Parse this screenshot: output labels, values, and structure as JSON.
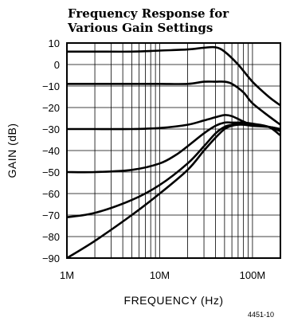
{
  "chart_data": {
    "type": "line",
    "title": "Frequency Response for\nVarious Gain Settings",
    "xlabel": "FREQUENCY (Hz)",
    "ylabel": "GAIN (dB)",
    "x_scale": "log",
    "xlim": [
      1000000,
      200000000
    ],
    "ylim": [
      -90,
      10
    ],
    "x_tick_labels": [
      {
        "value": 1000000,
        "label": "1M"
      },
      {
        "value": 10000000,
        "label": "10M"
      },
      {
        "value": 100000000,
        "label": "100M"
      }
    ],
    "y_ticks": [
      10,
      0,
      -10,
      -20,
      -30,
      -40,
      -50,
      -60,
      -70,
      -80,
      -90
    ],
    "grid": true,
    "figure_ref": "4451-10",
    "series": [
      {
        "x": [
          1000000,
          2000000,
          5000000,
          10000000,
          20000000,
          30000000,
          40000000,
          50000000,
          70000000,
          100000000,
          150000000,
          200000000
        ],
        "y": [
          6,
          6,
          6,
          6.5,
          7,
          7.8,
          8,
          6,
          0,
          -8,
          -15,
          -19
        ]
      },
      {
        "x": [
          1000000,
          2000000,
          5000000,
          10000000,
          20000000,
          30000000,
          40000000,
          50000000,
          60000000,
          80000000,
          100000000,
          150000000,
          200000000
        ],
        "y": [
          -9,
          -9,
          -9,
          -9,
          -9,
          -8,
          -8,
          -8,
          -9,
          -13,
          -18,
          -24,
          -28
        ]
      },
      {
        "x": [
          1000000,
          2000000,
          5000000,
          10000000,
          20000000,
          30000000,
          40000000,
          50000000,
          60000000,
          80000000,
          100000000,
          150000000,
          200000000
        ],
        "y": [
          -30,
          -30,
          -30,
          -29.5,
          -28,
          -26,
          -24.5,
          -23.5,
          -24,
          -26.5,
          -28,
          -29,
          -30
        ]
      },
      {
        "x": [
          1000000,
          2000000,
          5000000,
          10000000,
          15000000,
          20000000,
          30000000,
          40000000,
          50000000,
          60000000,
          70000000,
          80000000,
          100000000,
          150000000,
          200000000
        ],
        "y": [
          -50,
          -50,
          -49,
          -46,
          -42,
          -38,
          -32,
          -28.5,
          -27,
          -27,
          -27,
          -27,
          -27.5,
          -29,
          -33
        ]
      },
      {
        "x": [
          1000000,
          2000000,
          5000000,
          10000000,
          20000000,
          30000000,
          40000000,
          50000000,
          60000000,
          70000000,
          80000000,
          100000000,
          150000000,
          200000000
        ],
        "y": [
          -71,
          -69,
          -63,
          -56,
          -46,
          -38,
          -32,
          -29,
          -28,
          -27.5,
          -27.5,
          -28,
          -29,
          -31
        ]
      },
      {
        "x": [
          1000000,
          2000000,
          5000000,
          10000000,
          20000000,
          30000000,
          40000000,
          50000000,
          60000000,
          70000000,
          80000000,
          100000000,
          150000000,
          200000000
        ],
        "y": [
          -90,
          -82,
          -70,
          -60,
          -49,
          -40,
          -34,
          -30,
          -28.5,
          -28,
          -28,
          -28.5,
          -29,
          -30
        ]
      }
    ]
  }
}
